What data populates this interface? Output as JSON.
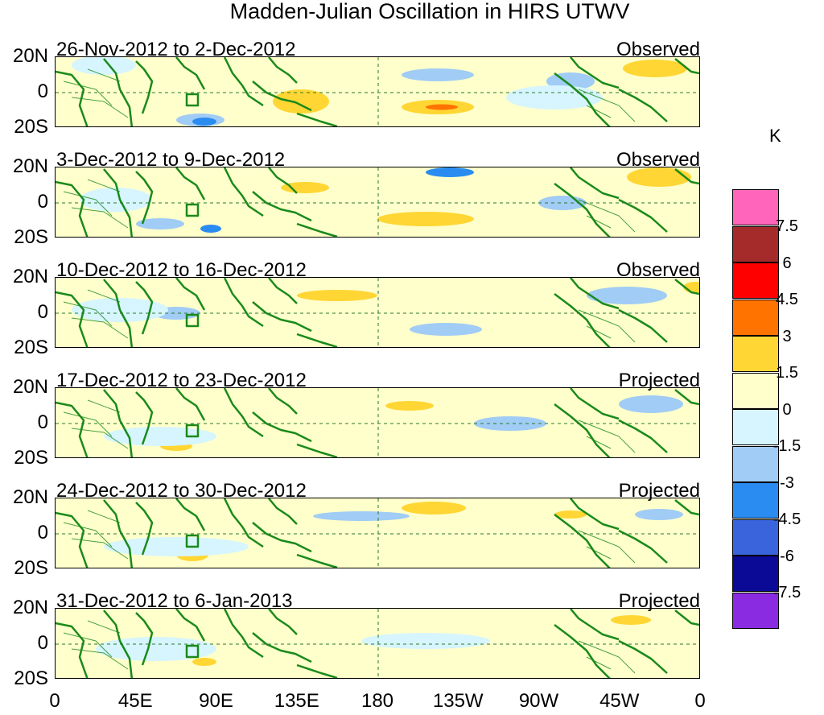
{
  "title": "Madden-Julian Oscillation in HIRS UTWV",
  "panels": [
    {
      "date": "26-Nov-2012 to 2-Dec-2012",
      "status": "Observed"
    },
    {
      "date": "3-Dec-2012 to 9-Dec-2012",
      "status": "Observed"
    },
    {
      "date": "10-Dec-2012 to 16-Dec-2012",
      "status": "Observed"
    },
    {
      "date": "17-Dec-2012 to 23-Dec-2012",
      "status": "Projected"
    },
    {
      "date": "24-Dec-2012 to 30-Dec-2012",
      "status": "Projected"
    },
    {
      "date": "31-Dec-2012 to 6-Jan-2013",
      "status": "Projected"
    }
  ],
  "lat_labels": [
    "20N",
    "0",
    "20S"
  ],
  "lon_labels": [
    "0",
    "45E",
    "90E",
    "135E",
    "180",
    "135W",
    "90W",
    "45W",
    "0"
  ],
  "colorbar": {
    "unit": "K",
    "labels": [
      "7.5",
      "6",
      "4.5",
      "3",
      "1.5",
      "0",
      "-1.5",
      "-3",
      "-4.5",
      "-6",
      "-7.5"
    ],
    "colors": [
      "#ff66bb",
      "#a52a2a",
      "#ff0000",
      "#ff7300",
      "#ffd633",
      "#ffffcc",
      "#d6f5ff",
      "#a0ccf5",
      "#2a8cf0",
      "#3a64dc",
      "#0a0a96",
      "#8a2be2"
    ]
  },
  "map_colors": {
    "land": "#1a8a1a",
    "grid": "#2a7a2a"
  }
}
